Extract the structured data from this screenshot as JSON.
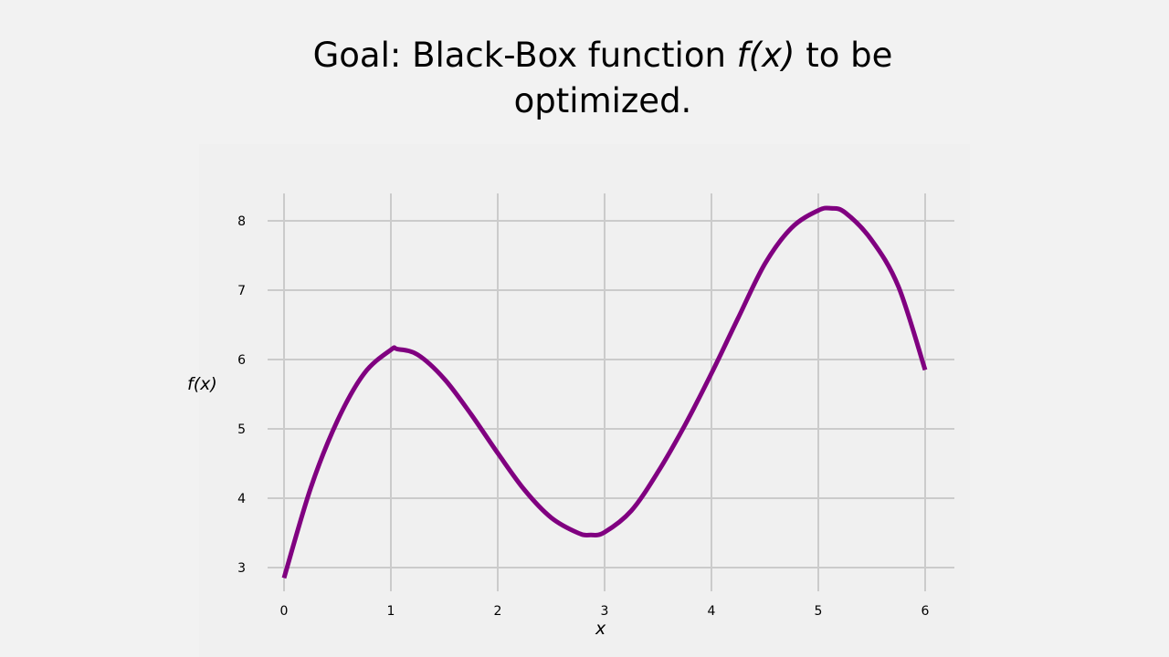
{
  "slide": {
    "title_prefix": "Goal: Black-Box function ",
    "title_italic": "f(x)",
    "title_suffix": " to be optimized."
  },
  "chart_data": {
    "type": "line",
    "title": "",
    "xlabel": "x",
    "ylabel": "f(x)",
    "xlim": [
      0,
      6
    ],
    "ylim": [
      2.75,
      8.4
    ],
    "xticks": [
      0,
      1,
      2,
      3,
      4,
      5,
      6
    ],
    "yticks": [
      3,
      4,
      5,
      6,
      7,
      8
    ],
    "grid": true,
    "line_color": "#800080",
    "series": [
      {
        "x": [
          0,
          0.25,
          0.5,
          0.75,
          1.0,
          1.06,
          1.25,
          1.5,
          1.75,
          2.0,
          2.25,
          2.5,
          2.75,
          2.87,
          3.0,
          3.25,
          3.5,
          3.75,
          4.0,
          4.25,
          4.5,
          4.75,
          5.0,
          5.12,
          5.25,
          5.5,
          5.75,
          6.0
        ],
        "y": [
          2.85,
          4.15,
          5.12,
          5.8,
          6.14,
          6.15,
          6.07,
          5.72,
          5.21,
          4.65,
          4.12,
          3.72,
          3.5,
          3.47,
          3.51,
          3.82,
          4.38,
          5.05,
          5.8,
          6.6,
          7.38,
          7.9,
          8.15,
          8.18,
          8.12,
          7.72,
          7.05,
          5.85
        ]
      }
    ]
  }
}
